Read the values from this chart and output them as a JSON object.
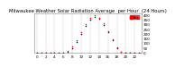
{
  "title": "Milwaukee Weather Solar Radiation Average  per Hour  (24 Hours)",
  "background_color": "#ffffff",
  "grid_color": "#999999",
  "hours": [
    0,
    1,
    2,
    3,
    4,
    5,
    6,
    7,
    8,
    9,
    10,
    11,
    12,
    13,
    14,
    15,
    16,
    17,
    18,
    19,
    20,
    21,
    22,
    23
  ],
  "red_data": [
    0,
    0,
    0,
    0,
    0,
    0,
    2,
    18,
    65,
    130,
    220,
    300,
    370,
    395,
    365,
    310,
    230,
    145,
    55,
    8,
    1,
    0,
    0,
    0
  ],
  "black_data": [
    0,
    0,
    0,
    0,
    0,
    0,
    1,
    12,
    50,
    110,
    200,
    280,
    350,
    380,
    355,
    295,
    215,
    130,
    45,
    5,
    0,
    0,
    0,
    0
  ],
  "red_color": "#ff0000",
  "black_color": "#000000",
  "ylim": [
    0,
    410
  ],
  "xlim": [
    -0.5,
    23.5
  ],
  "title_fontsize": 3.8,
  "tick_fontsize": 3.0,
  "marker_size": 1.2,
  "xticks": [
    0,
    2,
    4,
    6,
    8,
    10,
    12,
    14,
    16,
    18,
    20,
    22
  ],
  "yticks": [
    0,
    50,
    100,
    150,
    200,
    250,
    300,
    350,
    400
  ],
  "legend_color": "#ff0000",
  "legend_text": "Avg",
  "grid_xticks": [
    0,
    2,
    4,
    6,
    8,
    10,
    12,
    14,
    16,
    18,
    20,
    22
  ]
}
